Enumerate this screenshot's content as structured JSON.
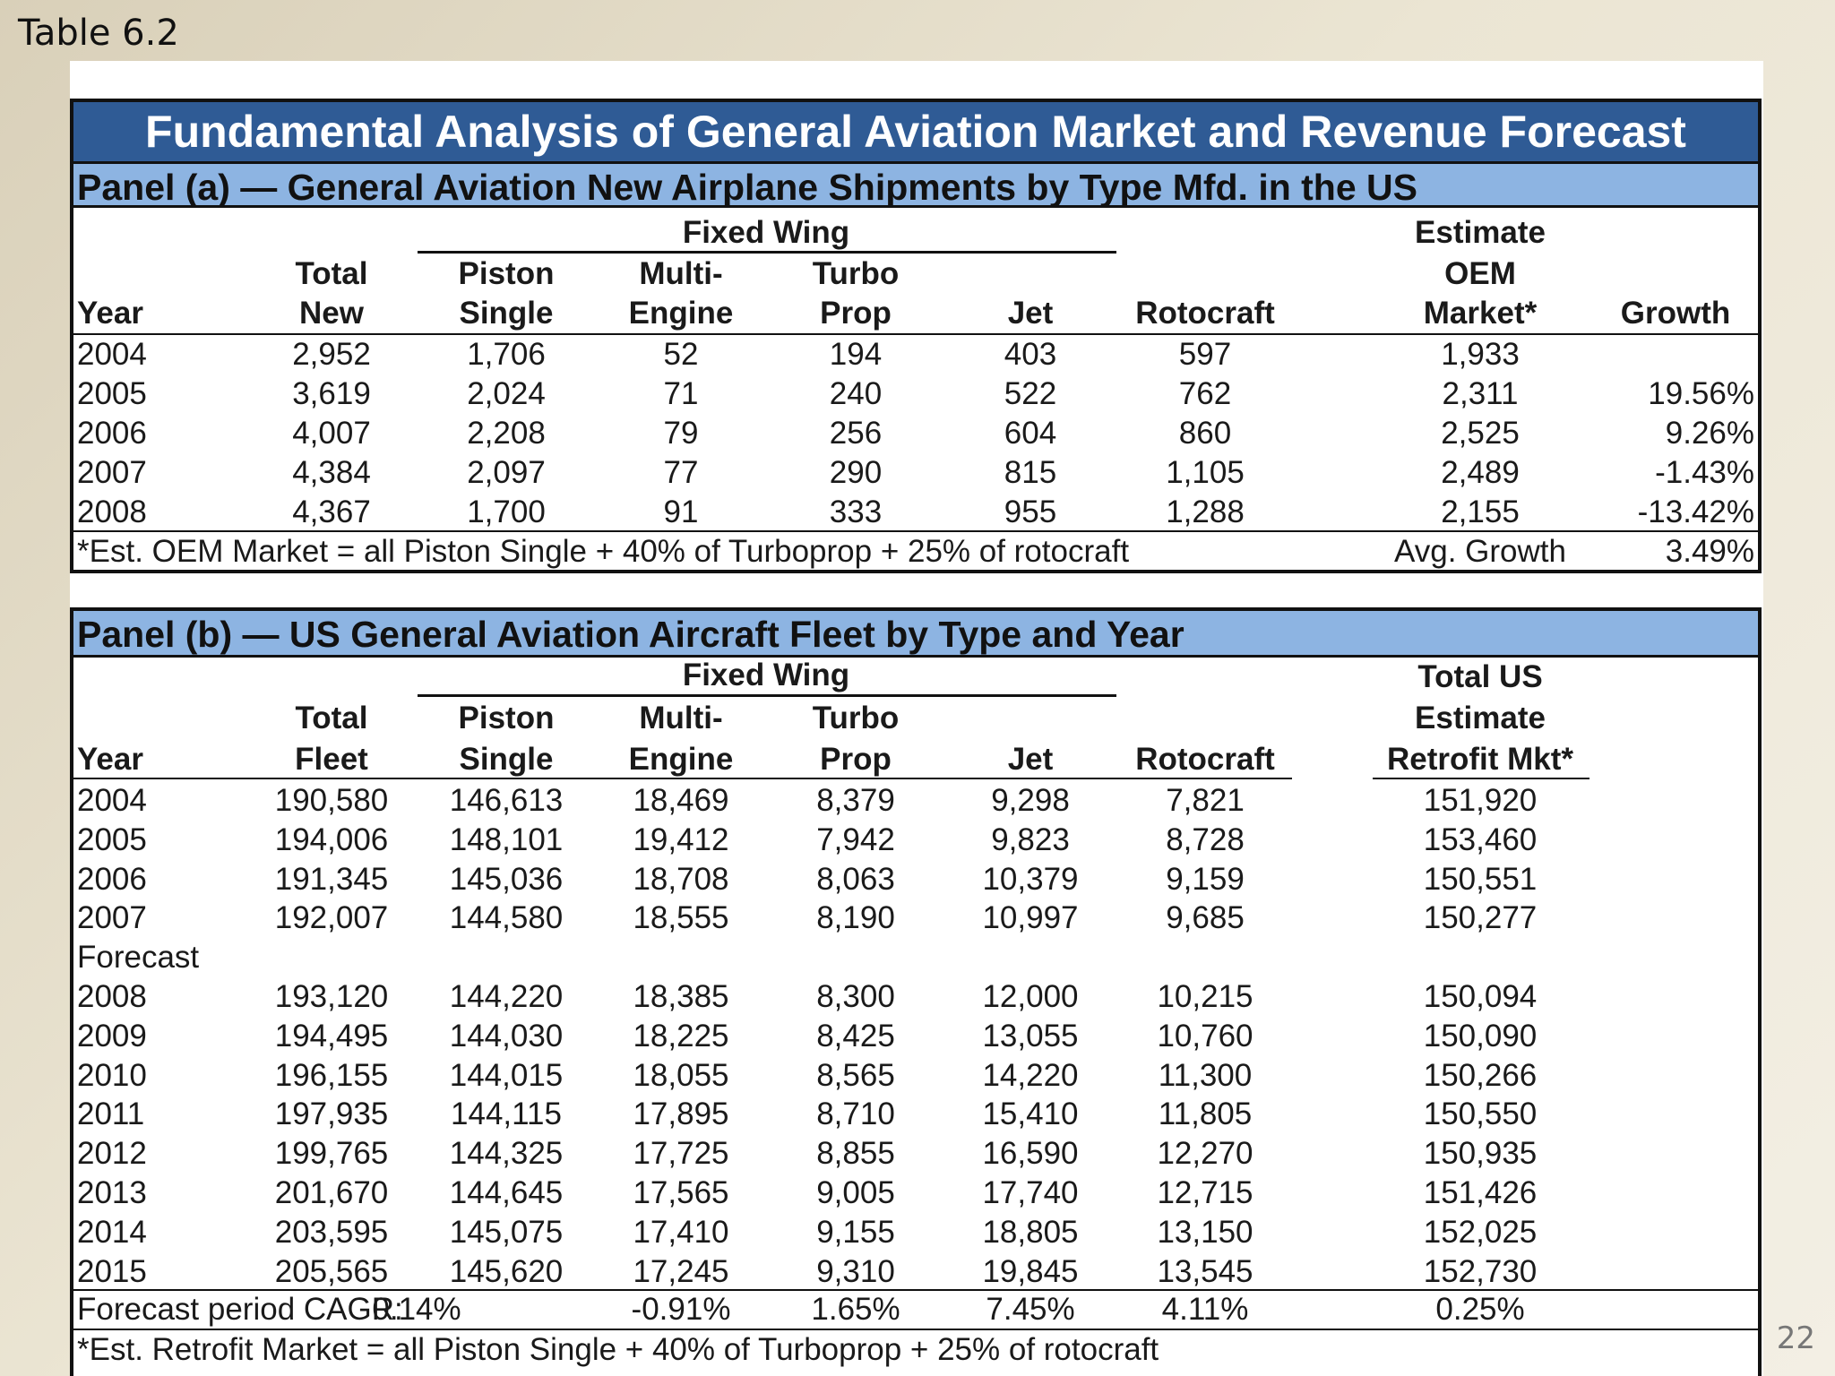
{
  "slide_label": "Table 6.2",
  "page_number": "22",
  "title": "Fundamental Analysis of General Aviation Market and Revenue Forecast",
  "panel_a": {
    "heading": "Panel (a) — General Aviation New Airplane Shipments by Type Mfd. in the US",
    "group_header": "Fixed Wing",
    "headers": {
      "year": "Year",
      "total_1": "Total",
      "total_2": "New",
      "piston_1": "Piston",
      "piston_2": "Single",
      "multi_1": "Multi-",
      "multi_2": "Engine",
      "turbo_1": "Turbo",
      "turbo_2": "Prop",
      "jet": "Jet",
      "roto": "Rotocraft",
      "oem_1": "Estimate",
      "oem_2": "OEM",
      "oem_3": "Market*",
      "growth": "Growth"
    },
    "rows": [
      [
        "2004",
        "2,952",
        "1,706",
        "52",
        "194",
        "403",
        "597",
        "1,933",
        ""
      ],
      [
        "2005",
        "3,619",
        "2,024",
        "71",
        "240",
        "522",
        "762",
        "2,311",
        "19.56%"
      ],
      [
        "2006",
        "4,007",
        "2,208",
        "79",
        "256",
        "604",
        "860",
        "2,525",
        "9.26%"
      ],
      [
        "2007",
        "4,384",
        "2,097",
        "77",
        "290",
        "815",
        "1,105",
        "2,489",
        "-1.43%"
      ],
      [
        "2008",
        "4,367",
        "1,700",
        "91",
        "333",
        "955",
        "1,288",
        "2,155",
        "-13.42%"
      ]
    ],
    "footnote": "*Est. OEM Market = all Piston Single + 40% of Turboprop + 25% of rotocraft",
    "avg_label": "Avg. Growth",
    "avg_value": "3.49%"
  },
  "panel_b": {
    "heading": "Panel (b) — US General Aviation Aircraft Fleet by Type and Year",
    "group_header": "Fixed Wing",
    "headers": {
      "year": "Year",
      "total_1": "Total",
      "total_2": "Fleet",
      "piston_1": "Piston",
      "piston_2": "Single",
      "multi_1": "Multi-",
      "multi_2": "Engine",
      "turbo_1": "Turbo",
      "turbo_2": "Prop",
      "jet": "Jet",
      "roto": "Rotocraft",
      "retro_1": "Total US",
      "retro_2": "Estimate",
      "retro_3": "Retrofit Mkt*"
    },
    "rows_actual": [
      [
        "2004",
        "190,580",
        "146,613",
        "18,469",
        "8,379",
        "9,298",
        "7,821",
        "151,920"
      ],
      [
        "2005",
        "194,006",
        "148,101",
        "19,412",
        "7,942",
        "9,823",
        "8,728",
        "153,460"
      ],
      [
        "2006",
        "191,345",
        "145,036",
        "18,708",
        "8,063",
        "10,379",
        "9,159",
        "150,551"
      ],
      [
        "2007",
        "192,007",
        "144,580",
        "18,555",
        "8,190",
        "10,997",
        "9,685",
        "150,277"
      ]
    ],
    "forecast_label": "Forecast",
    "rows_forecast": [
      [
        "2008",
        "193,120",
        "144,220",
        "18,385",
        "8,300",
        "12,000",
        "10,215",
        "150,094"
      ],
      [
        "2009",
        "194,495",
        "144,030",
        "18,225",
        "8,425",
        "13,055",
        "10,760",
        "150,090"
      ],
      [
        "2010",
        "196,155",
        "144,015",
        "18,055",
        "8,565",
        "14,220",
        "11,300",
        "150,266"
      ],
      [
        "2011",
        "197,935",
        "144,115",
        "17,895",
        "8,710",
        "15,410",
        "11,805",
        "150,550"
      ],
      [
        "2012",
        "199,765",
        "144,325",
        "17,725",
        "8,855",
        "16,590",
        "12,270",
        "150,935"
      ],
      [
        "2013",
        "201,670",
        "144,645",
        "17,565",
        "9,005",
        "17,740",
        "12,715",
        "151,426"
      ],
      [
        "2014",
        "203,595",
        "145,075",
        "17,410",
        "9,155",
        "18,805",
        "13,150",
        "152,025"
      ],
      [
        "2015",
        "205,565",
        "145,620",
        "17,245",
        "9,310",
        "19,845",
        "13,545",
        "152,730"
      ]
    ],
    "cagr": [
      "Forecast period CAGR:",
      "0.14%",
      "-0.91%",
      "1.65%",
      "7.45%",
      "4.11%",
      "0.25%"
    ],
    "footnote": "*Est. Retrofit Market = all Piston Single + 40% of Turboprop + 25% of rotocraft"
  }
}
